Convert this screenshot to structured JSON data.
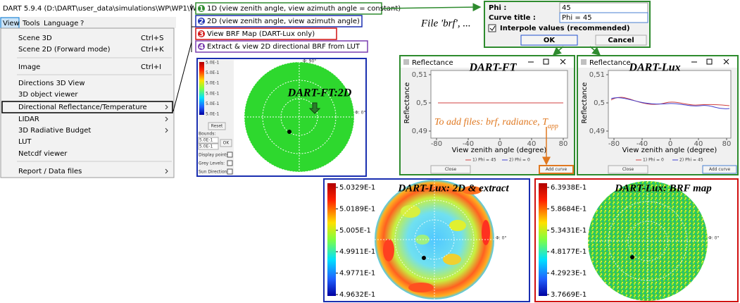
{
  "window": {
    "title": "DART 5.9.4 (D:\\DART\\user_data\\simulations\\WP\\WP1\\WP1B_Lux)"
  },
  "menu_bar": [
    "View",
    "Tools",
    "Language",
    "?"
  ],
  "view_menu": {
    "items": [
      {
        "label": "Scene 3D",
        "shortcut": "Ctrl+S"
      },
      {
        "label": "Scene 2D (Forward mode)",
        "shortcut": "Ctrl+K"
      },
      {
        "label": "Image",
        "shortcut": "Ctrl+I"
      },
      {
        "label": "Directions 3D View"
      },
      {
        "label": "3D object viewer"
      },
      {
        "label": "Directional Reflectance/Temperature"
      },
      {
        "label": "LIDAR"
      },
      {
        "label": "3D Radiative Budget"
      },
      {
        "label": "LUT"
      },
      {
        "label": "Netcdf viewer"
      },
      {
        "label": "Report / Data files"
      }
    ]
  },
  "submenu": {
    "items": [
      {
        "number": "1",
        "label": "1D (view zenith angle, view azimuth angle = constant)"
      },
      {
        "number": "2",
        "label": "2D (view zenith angle, view azimuth angle)"
      },
      {
        "number": "3",
        "label": "View BRF Map (DART-Lux only)"
      },
      {
        "number": "4",
        "label": "Extract & view 2D directional BRF from LUT"
      }
    ]
  },
  "file_note": "File 'brf', ...",
  "curve_dialog": {
    "phi_label": "Phi :",
    "phi_value": "45",
    "title_label": "Curve title :",
    "title_value": "Phi = 45",
    "interpolate": "Interpole values (recommended)",
    "ok": "OK",
    "cancel": "Cancel"
  },
  "ft_2d": {
    "caption": "DART-FT:2D",
    "legend": [
      "5.0E-1",
      "5.0E-1",
      "5.0E-1",
      "5.0E-1",
      "5.0E-1",
      "5.0E-1"
    ],
    "reset": "Reset",
    "bounds_label": "Bounds:",
    "bounds": [
      "5.0E-1",
      "5.0E-1"
    ],
    "ok": "OK",
    "display_points": "Display points:",
    "grey_levels": "Grey Levels:",
    "sun_direction": "Sun Direction:",
    "phi_top": "Φ: 90°",
    "phi_right": "Φ: 0°"
  },
  "ft_plot": {
    "window_title": "Reflectance",
    "caption": "DART-FT",
    "y_label": "Reflectance",
    "yticks": [
      "0,51",
      "0,5",
      "0,49"
    ],
    "xticks": [
      -80,
      -40,
      0,
      40,
      80
    ],
    "x_label": "View zenith angle (degree)",
    "legend": [
      "1) Phi = 45",
      "2) Phi = 0"
    ],
    "close": "Close",
    "add_curve": "Add curve",
    "note": "To add files: brf, radiance, T",
    "note_sub": "app"
  },
  "lux_plot": {
    "window_title": "Reflectance",
    "caption": "DART-Lux",
    "y_label": "Reflectance",
    "yticks": [
      "0,51",
      "0,5",
      "0,49"
    ],
    "xticks": [
      -80,
      -40,
      0,
      40,
      80
    ],
    "x_label": "View zenith angle (degree)",
    "legend": [
      "1) Phi = 0",
      "2) Phi = 45"
    ],
    "close": "Close",
    "add_curve": "Add curve"
  },
  "lux_2d": {
    "caption": "DART-Lux: 2D & extract",
    "colorbar": [
      "5.0329E-1",
      "5.0189E-1",
      "5.005E-1",
      "4.9911E-1",
      "4.9771E-1",
      "4.9632E-1"
    ],
    "phi_right": "Φ: 0°"
  },
  "brf_map": {
    "caption": "DART-Lux: BRF map",
    "colorbar": [
      "6.3938E-1",
      "5.8684E-1",
      "5.3431E-1",
      "4.8177E-1",
      "4.2923E-1",
      "3.7669E-1"
    ],
    "phi_right": "Φ: 0°"
  }
}
